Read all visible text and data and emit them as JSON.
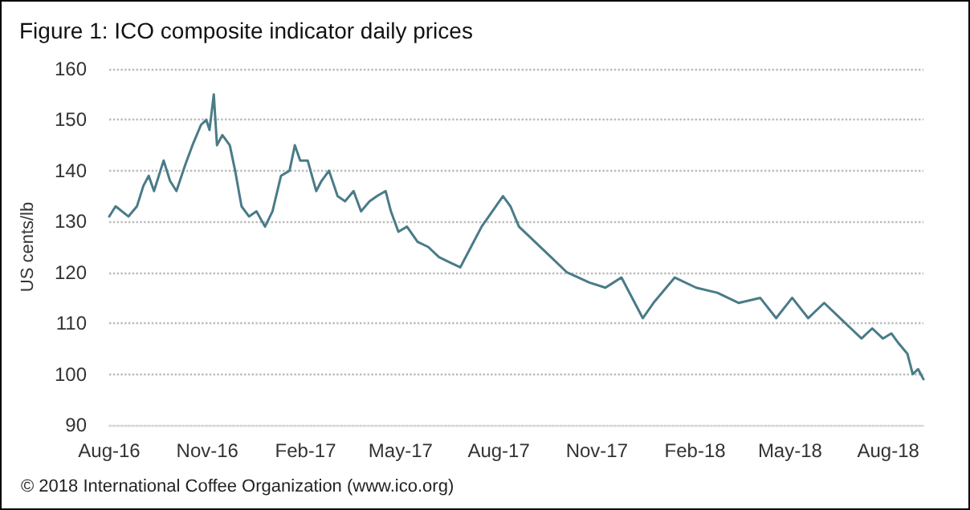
{
  "chart_data": {
    "type": "line",
    "title": "Figure 1: ICO composite indicator daily prices",
    "ylabel": "US cents/lb",
    "annotations": [
      "© 2018 International Coffee Organization (www.ico.org)"
    ],
    "x": [
      "2016-08-01",
      "2016-08-07",
      "2016-08-19",
      "2016-08-27",
      "2016-09-02",
      "2016-09-07",
      "2016-09-12",
      "2016-09-21",
      "2016-09-27",
      "2016-10-03",
      "2016-10-11",
      "2016-10-18",
      "2016-10-26",
      "2016-10-31",
      "2016-11-03",
      "2016-11-07",
      "2016-11-10",
      "2016-11-15",
      "2016-11-22",
      "2016-11-27",
      "2016-12-03",
      "2016-12-10",
      "2016-12-17",
      "2016-12-25",
      "2017-01-01",
      "2017-01-09",
      "2017-01-17",
      "2017-01-22",
      "2017-01-27",
      "2017-02-03",
      "2017-02-11",
      "2017-02-16",
      "2017-02-23",
      "2017-03-03",
      "2017-03-10",
      "2017-03-18",
      "2017-03-25",
      "2017-04-02",
      "2017-04-09",
      "2017-04-17",
      "2017-04-22",
      "2017-04-29",
      "2017-05-07",
      "2017-05-17",
      "2017-05-27",
      "2017-06-06",
      "2017-06-16",
      "2017-06-26",
      "2017-07-06",
      "2017-07-16",
      "2017-07-26",
      "2017-08-05",
      "2017-08-12",
      "2017-08-20",
      "2017-09-04",
      "2017-09-19",
      "2017-10-04",
      "2017-10-25",
      "2017-11-09",
      "2017-11-24",
      "2017-12-14",
      "2017-12-24",
      "2018-01-13",
      "2018-02-02",
      "2018-02-22",
      "2018-03-14",
      "2018-04-03",
      "2018-04-18",
      "2018-05-03",
      "2018-05-18",
      "2018-06-02",
      "2018-06-17",
      "2018-06-27",
      "2018-07-07",
      "2018-07-17",
      "2018-07-27",
      "2018-08-04",
      "2018-08-11",
      "2018-08-19",
      "2018-08-24",
      "2018-08-29",
      "2018-09-03"
    ],
    "series": [
      {
        "color": "#4a7b88",
        "values": [
          131,
          133,
          131,
          133,
          137,
          139,
          136,
          142,
          138,
          136,
          141,
          145,
          149,
          150,
          148,
          155,
          145,
          147,
          145,
          140,
          133,
          131,
          132,
          129,
          132,
          139,
          140,
          145,
          142,
          142,
          136,
          138,
          140,
          135,
          134,
          136,
          132,
          134,
          135,
          136,
          132,
          128,
          129,
          126,
          125,
          123,
          122,
          121,
          125,
          129,
          132,
          135,
          133,
          129,
          126,
          123,
          120,
          118,
          117,
          119,
          111,
          114,
          119,
          117,
          116,
          114,
          115,
          111,
          115,
          111,
          114,
          111,
          109,
          107,
          109,
          107,
          108,
          106,
          104,
          100,
          101,
          99
        ]
      }
    ],
    "xlim": [
      "2016-08-01",
      "2018-09-03"
    ],
    "xticks": [
      {
        "value": "2016-08-01",
        "label": "Aug-16"
      },
      {
        "value": "2016-11-01",
        "label": "Nov-16"
      },
      {
        "value": "2017-02-01",
        "label": "Feb-17"
      },
      {
        "value": "2017-05-01",
        "label": "May-17"
      },
      {
        "value": "2017-08-01",
        "label": "Aug-17"
      },
      {
        "value": "2017-11-01",
        "label": "Nov-17"
      },
      {
        "value": "2018-02-01",
        "label": "Feb-18"
      },
      {
        "value": "2018-05-01",
        "label": "May-18"
      },
      {
        "value": "2018-08-01",
        "label": "Aug-18"
      }
    ],
    "ylim": [
      90,
      160
    ],
    "yticks": [
      90,
      100,
      110,
      120,
      130,
      140,
      150,
      160
    ],
    "grid": "y",
    "marker": "none",
    "line_style": "solid"
  }
}
